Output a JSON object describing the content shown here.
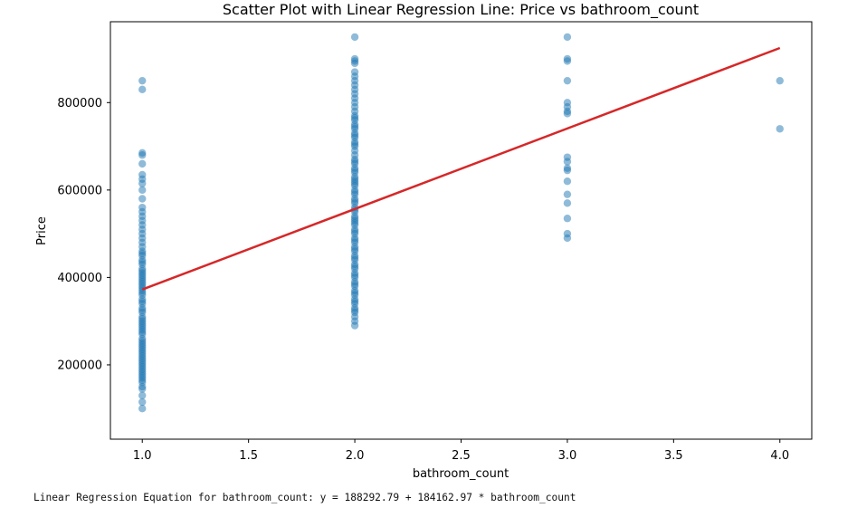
{
  "chart_data": {
    "type": "scatter",
    "title": "Scatter Plot with Linear Regression Line: Price vs bathroom_count",
    "xlabel": "bathroom_count",
    "ylabel": "Price",
    "xlim": [
      0.85,
      4.15
    ],
    "ylim": [
      30000,
      985000
    ],
    "xticks": [
      1.0,
      1.5,
      2.0,
      2.5,
      3.0,
      3.5,
      4.0
    ],
    "xtick_labels": [
      "1.0",
      "1.5",
      "2.0",
      "2.5",
      "3.0",
      "3.5",
      "4.0"
    ],
    "yticks": [
      200000,
      400000,
      600000,
      800000
    ],
    "ytick_labels": [
      "200000",
      "400000",
      "600000",
      "800000"
    ],
    "grid": false,
    "point_color": "#1f77b4",
    "point_alpha": 0.5,
    "line_color": "#d62728",
    "regression": {
      "intercept": 188292.79,
      "slope": 184162.97,
      "x_range": [
        1.0,
        4.0
      ]
    },
    "series": [
      {
        "type": "scatter",
        "x": [
          1,
          1,
          1,
          1,
          1,
          1,
          1,
          1,
          1,
          1,
          1,
          1,
          1,
          1,
          1,
          1,
          1,
          1,
          1,
          1,
          1,
          1,
          1,
          1,
          1,
          1,
          1,
          1,
          1,
          1,
          1,
          1,
          1,
          1,
          1,
          1,
          1,
          1,
          1,
          1,
          1,
          1,
          1,
          1,
          1,
          1,
          1,
          1,
          1,
          1,
          1,
          1,
          1,
          1,
          1,
          1,
          1,
          1,
          1,
          1,
          1,
          1,
          1,
          1,
          1,
          1,
          1,
          1,
          1,
          1,
          1,
          1,
          1,
          1,
          1,
          1,
          1,
          1,
          1,
          1,
          2,
          2,
          2,
          2,
          2,
          2,
          2,
          2,
          2,
          2,
          2,
          2,
          2,
          2,
          2,
          2,
          2,
          2,
          2,
          2,
          2,
          2,
          2,
          2,
          2,
          2,
          2,
          2,
          2,
          2,
          2,
          2,
          2,
          2,
          2,
          2,
          2,
          2,
          2,
          2,
          2,
          2,
          2,
          2,
          2,
          2,
          2,
          2,
          2,
          2,
          2,
          2,
          2,
          2,
          2,
          2,
          2,
          2,
          2,
          2,
          2,
          2,
          2,
          2,
          2,
          2,
          2,
          2,
          2,
          2,
          2,
          2,
          2,
          2,
          2,
          2,
          2,
          2,
          2,
          2,
          2,
          2,
          2,
          2,
          2,
          2,
          3,
          3,
          3,
          3,
          3,
          3,
          3,
          3,
          3,
          3,
          3,
          3,
          3,
          3,
          3,
          3,
          3,
          3,
          4,
          4
        ],
        "y": [
          850000,
          830000,
          685000,
          680000,
          660000,
          635000,
          625000,
          615000,
          600000,
          580000,
          560000,
          550000,
          540000,
          530000,
          520000,
          510000,
          500000,
          490000,
          480000,
          470000,
          460000,
          450000,
          440000,
          430000,
          420000,
          410000,
          400000,
          395000,
          390000,
          380000,
          375000,
          370000,
          360000,
          350000,
          340000,
          330000,
          320000,
          310000,
          300000,
          295000,
          290000,
          285000,
          280000,
          270000,
          260000,
          250000,
          240000,
          235000,
          230000,
          225000,
          220000,
          215000,
          210000,
          200000,
          195000,
          190000,
          180000,
          170000,
          160000,
          150000,
          145000,
          130000,
          115000,
          100000,
          455000,
          435000,
          415000,
          385000,
          365000,
          345000,
          325000,
          305000,
          275000,
          255000,
          245000,
          205000,
          185000,
          175000,
          165000,
          405000,
          950000,
          900000,
          895000,
          890000,
          870000,
          860000,
          850000,
          840000,
          830000,
          820000,
          810000,
          800000,
          790000,
          780000,
          770000,
          760000,
          750000,
          740000,
          730000,
          720000,
          710000,
          700000,
          690000,
          680000,
          670000,
          660000,
          650000,
          640000,
          630000,
          620000,
          610000,
          600000,
          590000,
          580000,
          570000,
          560000,
          550000,
          540000,
          530000,
          520000,
          510000,
          500000,
          490000,
          480000,
          470000,
          460000,
          450000,
          440000,
          430000,
          420000,
          410000,
          400000,
          390000,
          380000,
          370000,
          360000,
          350000,
          340000,
          330000,
          320000,
          310000,
          300000,
          290000,
          665000,
          645000,
          625000,
          615000,
          595000,
          575000,
          555000,
          535000,
          525000,
          505000,
          485000,
          465000,
          445000,
          425000,
          405000,
          385000,
          365000,
          345000,
          325000,
          765000,
          745000,
          725000,
          705000,
          950000,
          900000,
          895000,
          850000,
          800000,
          790000,
          780000,
          675000,
          665000,
          650000,
          645000,
          620000,
          590000,
          570000,
          535000,
          500000,
          490000,
          775000,
          850000,
          740000
        ]
      }
    ]
  },
  "equation_text": "Linear Regression Equation for bathroom_count: y = 188292.79 + 184162.97 * bathroom_count"
}
